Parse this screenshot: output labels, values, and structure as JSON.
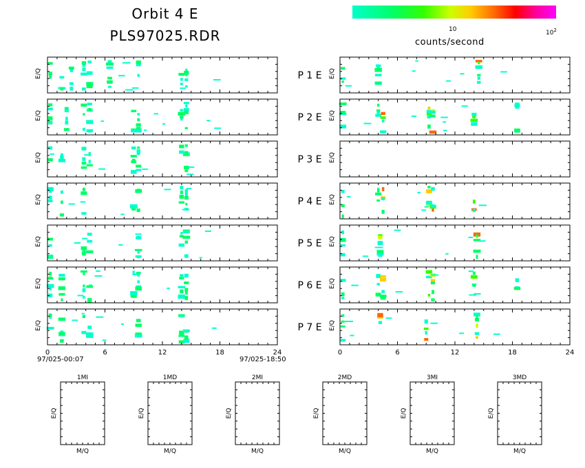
{
  "header": {
    "title_line1": "Orbit  4  E",
    "title_line2": "PLS97025.RDR"
  },
  "colorbar": {
    "label": "counts/second",
    "tick_10": "10",
    "tick_100_base": "10",
    "tick_100_exp": "2",
    "colors": [
      "#00ffcc",
      "#00ff66",
      "#33ff00",
      "#ccff00",
      "#ffcc00",
      "#ff6600",
      "#ff0000",
      "#ff0099",
      "#ff00ff"
    ]
  },
  "panel_ylabel": "E/Q",
  "rows": [
    {
      "label": "P  1  E"
    },
    {
      "label": "P  2  E"
    },
    {
      "label": "P  3  E"
    },
    {
      "label": "P  4  E"
    },
    {
      "label": "P  5  E"
    },
    {
      "label": "P  6  E"
    },
    {
      "label": "P  7  E"
    }
  ],
  "x_axis": {
    "ticks": [
      "0",
      "6",
      "12",
      "18",
      "24"
    ],
    "start_stamp": "97/025-00:07",
    "end_stamp": "97/025-18:50"
  },
  "small_panels": {
    "titles": [
      "1MI",
      "1MD",
      "2MI",
      "2MD",
      "3MI",
      "3MD"
    ],
    "ylabel": "E/Q",
    "xlabel": "M/Q"
  },
  "chart_data": {
    "type": "heatmap",
    "x_unit": "hours",
    "xlim": [
      0,
      24
    ],
    "color_scale": "log counts/second, 1 to 100",
    "left_column_activity": [
      {
        "row": "P 1",
        "hours": [
          0.3,
          1.5,
          2.5,
          3.8,
          4.4,
          6.5,
          9.5,
          14.0,
          14.5
        ]
      },
      {
        "row": "P 2",
        "hours": [
          0.3,
          2.0,
          3.8,
          4.4,
          9.0,
          9.5,
          14.0,
          14.5
        ]
      },
      {
        "row": "P 3",
        "hours": [
          0.3,
          1.5,
          3.8,
          4.4,
          9.0,
          9.5,
          14.0,
          14.5
        ]
      },
      {
        "row": "P 4",
        "hours": [
          0.3,
          1.5,
          3.8,
          9.0,
          9.5,
          14.0,
          14.5
        ]
      },
      {
        "row": "P 5",
        "hours": [
          0.3,
          3.8,
          4.4,
          9.5,
          14.0,
          14.5
        ]
      },
      {
        "row": "P 6",
        "hours": [
          0.3,
          1.5,
          3.8,
          4.4,
          9.0,
          9.5,
          14.0,
          14.5
        ]
      },
      {
        "row": "P 7",
        "hours": [
          0.3,
          1.5,
          3.8,
          4.4,
          9.5,
          14.0,
          14.5
        ]
      }
    ],
    "right_column_activity": [
      {
        "row": "P 1",
        "hours": [
          0.3,
          4.0,
          14.5
        ]
      },
      {
        "row": "P 2",
        "hours": [
          0.3,
          4.0,
          4.5,
          9.3,
          9.7,
          14.0,
          18.5
        ]
      },
      {
        "row": "P 3",
        "hours": []
      },
      {
        "row": "P 4",
        "hours": [
          0.3,
          4.0,
          4.5,
          9.3,
          9.7,
          14.0
        ]
      },
      {
        "row": "P 5",
        "hours": [
          0.3,
          4.2,
          14.3
        ]
      },
      {
        "row": "P 6",
        "hours": [
          0.3,
          4.0,
          4.5,
          9.3,
          9.7,
          14.0,
          18.5
        ]
      },
      {
        "row": "P 7",
        "hours": [
          0.3,
          4.2,
          9.0,
          14.3
        ]
      }
    ]
  }
}
